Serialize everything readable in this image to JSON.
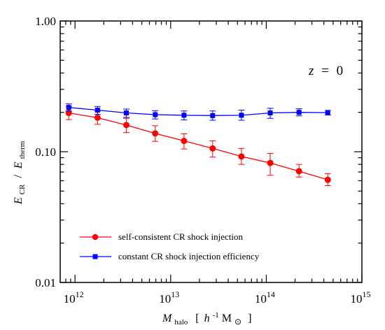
{
  "chart_data": {
    "type": "line",
    "x_scale": "log",
    "y_scale": "log",
    "xlim": [
      700000000000.0,
      1000000000000000.0
    ],
    "ylim": [
      0.01,
      1.0
    ],
    "x_ticks": [
      1000000000000.0,
      10000000000000.0,
      100000000000000.0,
      1000000000000000.0
    ],
    "x_tick_labels": [
      {
        "base": "10",
        "exp": "12"
      },
      {
        "base": "10",
        "exp": "13"
      },
      {
        "base": "10",
        "exp": "14"
      },
      {
        "base": "10",
        "exp": "15"
      }
    ],
    "y_ticks": [
      0.01,
      0.1,
      1.0
    ],
    "y_tick_labels": [
      "0.01",
      "0.10",
      "1.00"
    ],
    "xlabel": {
      "sym": "M",
      "sub": "halo",
      "bracket_open": "[",
      "h": "h",
      "exp": "-1",
      "unit": "M",
      "sun": "⊙",
      "bracket_close": "]"
    },
    "ylabel": {
      "num": "E",
      "num_sub": "CR",
      "slash": "/",
      "den": "E",
      "den_sub": "therm"
    },
    "annotation": {
      "lhs": "z",
      "eq": "=",
      "rhs": "0"
    },
    "grid": false,
    "legend_position": "bottom-left",
    "series": [
      {
        "name": "self-consistent CR shock injection",
        "color": "#ff0000",
        "marker": "circle",
        "x": [
          860000000000.0,
          1720000000000.0,
          3440000000000.0,
          6900000000000.0,
          13800000000000.0,
          27500000000000.0,
          55000000000000.0,
          110000000000000.0,
          220000000000000.0,
          440000000000000.0
        ],
        "y": [
          0.198,
          0.182,
          0.16,
          0.138,
          0.121,
          0.106,
          0.092,
          0.082,
          0.071,
          0.061
        ],
        "err_low": [
          0.176,
          0.162,
          0.14,
          0.12,
          0.105,
          0.091,
          0.08,
          0.066,
          0.064,
          0.055
        ],
        "err_high": [
          0.222,
          0.204,
          0.18,
          0.158,
          0.137,
          0.121,
          0.106,
          0.097,
          0.08,
          0.068
        ]
      },
      {
        "name": "constant CR shock injection efficiency",
        "color": "#0000ff",
        "marker": "square",
        "x": [
          860000000000.0,
          1720000000000.0,
          3440000000000.0,
          6900000000000.0,
          13800000000000.0,
          27500000000000.0,
          55000000000000.0,
          110000000000000.0,
          220000000000000.0,
          440000000000000.0
        ],
        "y": [
          0.218,
          0.208,
          0.198,
          0.192,
          0.19,
          0.189,
          0.19,
          0.198,
          0.2,
          0.199
        ],
        "err_low": [
          0.205,
          0.193,
          0.183,
          0.178,
          0.175,
          0.174,
          0.174,
          0.18,
          0.188,
          0.191
        ],
        "err_high": [
          0.232,
          0.222,
          0.212,
          0.206,
          0.205,
          0.205,
          0.208,
          0.215,
          0.213,
          0.207
        ]
      }
    ]
  }
}
